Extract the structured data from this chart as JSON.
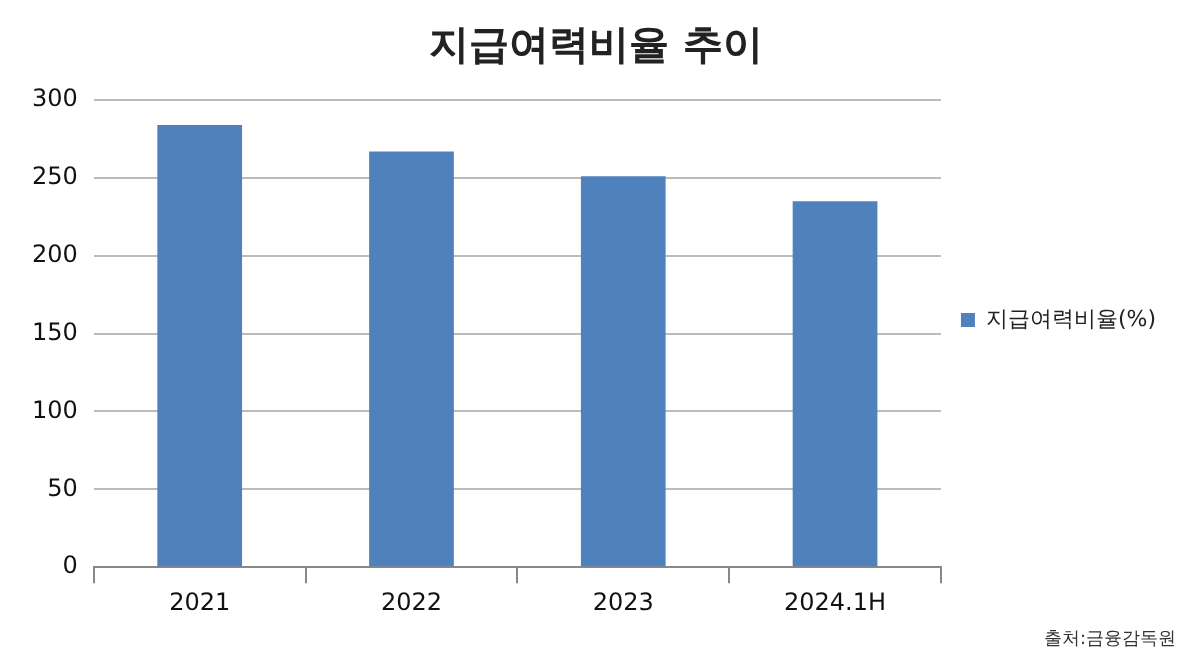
{
  "chart_data": {
    "type": "bar",
    "title": "지급여력비율 추이",
    "categories": [
      "2021",
      "2022",
      "2023",
      "2024.1H"
    ],
    "series": [
      {
        "name": "지급여력비율(%)",
        "color": "#4f81bd",
        "values": [
          284,
          267,
          251,
          235
        ]
      }
    ],
    "ylim": [
      0,
      300
    ],
    "yticks": [
      0,
      50,
      100,
      150,
      200,
      250,
      300
    ],
    "grid": "y",
    "legend": "right",
    "annotations": [
      "출처:금융감독원"
    ]
  }
}
